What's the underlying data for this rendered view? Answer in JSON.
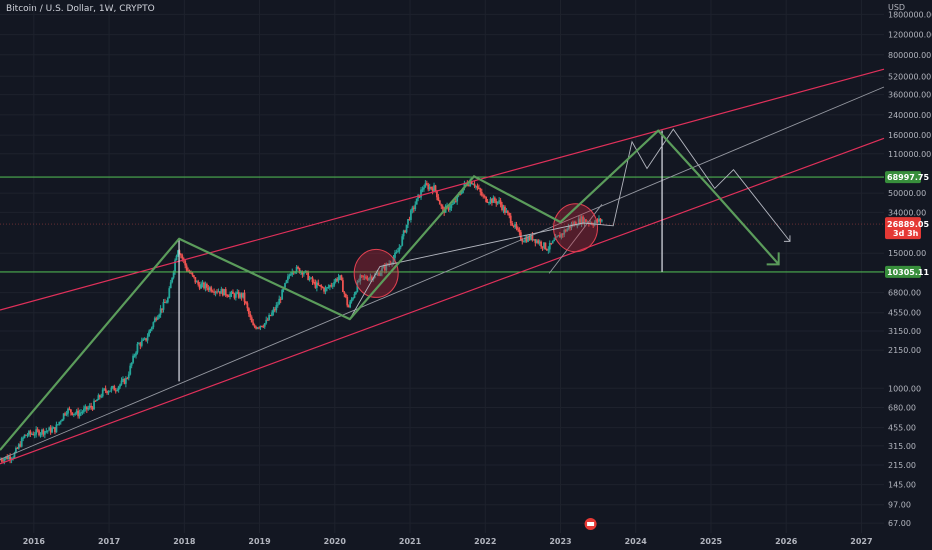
{
  "header": {
    "title": "Bitcoin / U.S. Dollar, 1W, CRYPTO"
  },
  "colors": {
    "background": "#131722",
    "grid": "#1e222d",
    "up": "#26a69a",
    "down": "#ef5350",
    "channel": "#e0305a",
    "green_lines": "#4caf50",
    "path": "#5b9c5b",
    "ghost_path": "#b2b5be",
    "support_line": "#9598a1",
    "circle_fill": "rgba(200,40,60,0.35)",
    "circle_stroke": "#e04050"
  },
  "chart_data": {
    "type": "candlestick",
    "title": "Bitcoin / U.S. Dollar, 1W, CRYPTO",
    "y_unit": "USD",
    "y_scale": "log",
    "ylim": [
      55,
      2400000
    ],
    "xlim": [
      2015.55,
      2027.3
    ],
    "x_ticks": [
      "2016",
      "2017",
      "2018",
      "2019",
      "2020",
      "2021",
      "2022",
      "2023",
      "2024",
      "2025",
      "2026",
      "2027"
    ],
    "y_ticks": [
      "1800000.00",
      "1200000.00",
      "800000.00",
      "520000.00",
      "360000.00",
      "240000.00",
      "160000.00",
      "110000.00",
      "50000.00",
      "34000.00",
      "15000.00",
      "6800.00",
      "4550.00",
      "3150.00",
      "2150.00",
      "1000.00",
      "680.00",
      "455.00",
      "315.00",
      "215.00",
      "145.00",
      "97.00",
      "67.00"
    ],
    "price_path": [
      [
        2015.55,
        240
      ],
      [
        2015.75,
        260
      ],
      [
        2015.9,
        390
      ],
      [
        2016.1,
        420
      ],
      [
        2016.3,
        440
      ],
      [
        2016.45,
        650
      ],
      [
        2016.6,
        600
      ],
      [
        2016.8,
        700
      ],
      [
        2016.95,
        950
      ],
      [
        2017.1,
        1000
      ],
      [
        2017.25,
        1200
      ],
      [
        2017.4,
        2400
      ],
      [
        2017.5,
        2600
      ],
      [
        2017.65,
        4300
      ],
      [
        2017.8,
        6000
      ],
      [
        2017.93,
        17000
      ],
      [
        2018.05,
        11000
      ],
      [
        2018.2,
        8000
      ],
      [
        2018.35,
        7500
      ],
      [
        2018.5,
        7000
      ],
      [
        2018.65,
        6500
      ],
      [
        2018.8,
        6400
      ],
      [
        2018.93,
        3400
      ],
      [
        2019.1,
        3700
      ],
      [
        2019.25,
        5200
      ],
      [
        2019.45,
        11000
      ],
      [
        2019.6,
        10500
      ],
      [
        2019.75,
        8000
      ],
      [
        2019.9,
        7200
      ],
      [
        2020.08,
        9500
      ],
      [
        2020.2,
        5000
      ],
      [
        2020.35,
        9000
      ],
      [
        2020.55,
        9500
      ],
      [
        2020.7,
        11500
      ],
      [
        2020.85,
        15000
      ],
      [
        2021.0,
        30000
      ],
      [
        2021.2,
        58000
      ],
      [
        2021.35,
        55000
      ],
      [
        2021.45,
        35000
      ],
      [
        2021.6,
        40000
      ],
      [
        2021.75,
        60000
      ],
      [
        2021.85,
        64000
      ],
      [
        2022.0,
        45000
      ],
      [
        2022.2,
        42000
      ],
      [
        2022.35,
        30000
      ],
      [
        2022.5,
        20000
      ],
      [
        2022.65,
        20500
      ],
      [
        2022.85,
        16500
      ],
      [
        2023.0,
        21000
      ],
      [
        2023.15,
        26000
      ],
      [
        2023.3,
        29500
      ],
      [
        2023.45,
        27500
      ],
      [
        2023.55,
        29000
      ]
    ],
    "last_price": {
      "value": "26889.05",
      "countdown": "3d 3h"
    },
    "horizontal_levels": [
      {
        "value": 68997.75,
        "label": "68997.75"
      },
      {
        "value": 10305.11,
        "label": "10305.11"
      }
    ],
    "channel_upper": [
      [
        2015.55,
        4800
      ],
      [
        2027.3,
        600000
      ]
    ],
    "channel_lower": [
      [
        2015.55,
        220
      ],
      [
        2027.3,
        150000
      ]
    ],
    "support_line": [
      [
        2015.55,
        240
      ],
      [
        2027.3,
        420000
      ]
    ],
    "steep_line": [
      [
        2022.85,
        10000
      ],
      [
        2023.55,
        40000
      ]
    ],
    "projection_path": [
      [
        2015.55,
        290
      ],
      [
        2017.93,
        20000
      ],
      [
        2020.2,
        4000
      ],
      [
        2021.85,
        70000
      ],
      [
        2023.0,
        28000
      ],
      [
        2024.3,
        175000
      ],
      [
        2025.0,
        55000
      ],
      [
        2025.9,
        12000
      ]
    ],
    "ghost_path": [
      [
        2020.2,
        4000
      ],
      [
        2020.6,
        11500
      ],
      [
        2023.3,
        27500
      ],
      [
        2023.7,
        26000
      ],
      [
        2023.95,
        140000
      ],
      [
        2024.15,
        82000
      ],
      [
        2024.5,
        180000
      ],
      [
        2025.05,
        55000
      ],
      [
        2025.3,
        80000
      ],
      [
        2026.05,
        19000
      ]
    ],
    "verticals": [
      {
        "x": 2017.93,
        "from": 20000,
        "to": 1150
      },
      {
        "x": 2024.35,
        "from": 175000,
        "to": 10305.11
      }
    ],
    "circles": [
      {
        "x": 2020.55,
        "y": 10000
      },
      {
        "x": 2023.2,
        "y": 25000
      }
    ]
  }
}
